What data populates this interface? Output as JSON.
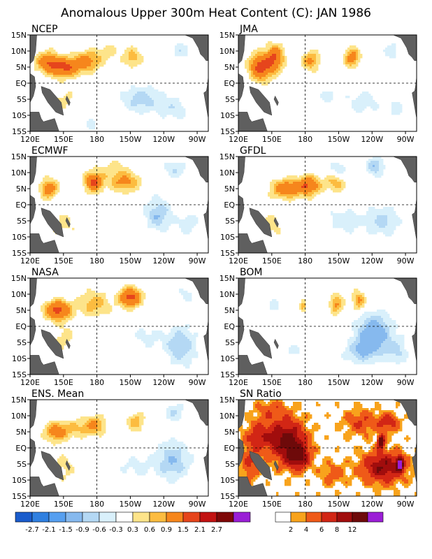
{
  "title": "Anomalous Upper 300m Heat Content (C): JAN 1986",
  "chart_data": [
    {
      "type": "heatmap",
      "title": "NCEP",
      "lon_ticks": [
        "120E",
        "150E",
        "180",
        "150W",
        "120W",
        "90W"
      ],
      "lat_ticks": [
        "15N",
        "10N",
        "5N",
        "EQ",
        "5S",
        "10S",
        "15S"
      ],
      "xlim": [
        120,
        280
      ],
      "ylim": [
        -15,
        15
      ],
      "features": [
        {
          "lon": 150,
          "lat": 5,
          "v": 1.6,
          "rx": 16,
          "ry": 3
        },
        {
          "lon": 172,
          "lat": 7,
          "v": 1.0,
          "rx": 12,
          "ry": 3
        },
        {
          "lon": 135,
          "lat": 7,
          "v": 1.0,
          "rx": 10,
          "ry": 3
        },
        {
          "lon": 212,
          "lat": 8,
          "v": 0.8,
          "rx": 8,
          "ry": 3
        },
        {
          "lon": 190,
          "lat": 10,
          "v": 0.4,
          "rx": 12,
          "ry": 3
        },
        {
          "lon": 150,
          "lat": -5,
          "v": 0.4,
          "rx": 10,
          "ry": 4
        },
        {
          "lon": 220,
          "lat": -5,
          "v": -0.8,
          "rx": 18,
          "ry": 4
        },
        {
          "lon": 250,
          "lat": -8,
          "v": -0.5,
          "rx": 14,
          "ry": 4
        },
        {
          "lon": 255,
          "lat": 10,
          "v": -0.5,
          "rx": 10,
          "ry": 3
        },
        {
          "lon": 175,
          "lat": -12,
          "v": -0.4,
          "rx": 8,
          "ry": 3
        }
      ]
    },
    {
      "type": "heatmap",
      "title": "JMA",
      "lon_ticks": [
        "120E",
        "150E",
        "180",
        "150W",
        "120W",
        "90W"
      ],
      "lat_ticks": [
        "15N",
        "10N",
        "5N",
        "EQ",
        "5S",
        "10S",
        "15S"
      ],
      "xlim": [
        120,
        280
      ],
      "ylim": [
        -15,
        15
      ],
      "features": [
        {
          "lon": 140,
          "lat": 5,
          "v": 1.8,
          "rx": 10,
          "ry": 4
        },
        {
          "lon": 153,
          "lat": 8,
          "v": 1.4,
          "rx": 8,
          "ry": 4
        },
        {
          "lon": 185,
          "lat": 7,
          "v": 1.0,
          "rx": 8,
          "ry": 3
        },
        {
          "lon": 222,
          "lat": 8,
          "v": 1.2,
          "rx": 7,
          "ry": 3
        },
        {
          "lon": 200,
          "lat": -4,
          "v": -0.4,
          "rx": 12,
          "ry": 3
        },
        {
          "lon": 232,
          "lat": -6,
          "v": -0.5,
          "rx": 14,
          "ry": 4
        },
        {
          "lon": 262,
          "lat": -8,
          "v": -0.4,
          "rx": 10,
          "ry": 4
        },
        {
          "lon": 258,
          "lat": 10,
          "v": -0.5,
          "rx": 8,
          "ry": 3
        }
      ]
    },
    {
      "type": "heatmap",
      "title": "ECMWF",
      "lon_ticks": [
        "120E",
        "150E",
        "180",
        "150W",
        "120W",
        "90W"
      ],
      "lat_ticks": [
        "15N",
        "10N",
        "5N",
        "EQ",
        "5S",
        "10S",
        "15S"
      ],
      "xlim": [
        120,
        280
      ],
      "ylim": [
        -15,
        15
      ],
      "features": [
        {
          "lon": 137,
          "lat": 5,
          "v": 1.2,
          "rx": 8,
          "ry": 3
        },
        {
          "lon": 177,
          "lat": 7,
          "v": 1.6,
          "rx": 8,
          "ry": 3
        },
        {
          "lon": 205,
          "lat": 7,
          "v": 1.0,
          "rx": 14,
          "ry": 3
        },
        {
          "lon": 195,
          "lat": 11,
          "v": 0.4,
          "rx": 16,
          "ry": 3
        },
        {
          "lon": 150,
          "lat": -6,
          "v": 0.4,
          "rx": 12,
          "ry": 5
        },
        {
          "lon": 235,
          "lat": -3,
          "v": -0.9,
          "rx": 12,
          "ry": 5
        },
        {
          "lon": 262,
          "lat": -6,
          "v": -0.5,
          "rx": 10,
          "ry": 4
        },
        {
          "lon": 250,
          "lat": 11,
          "v": -0.6,
          "rx": 10,
          "ry": 3
        }
      ]
    },
    {
      "type": "heatmap",
      "title": "GFDL",
      "lon_ticks": [
        "120E",
        "150E",
        "180",
        "150W",
        "120W",
        "90W"
      ],
      "lat_ticks": [
        "15N",
        "10N",
        "5N",
        "EQ",
        "5S",
        "10S",
        "15S"
      ],
      "xlim": [
        120,
        280
      ],
      "ylim": [
        -15,
        15
      ],
      "features": [
        {
          "lon": 163,
          "lat": 5,
          "v": 1.3,
          "rx": 14,
          "ry": 3
        },
        {
          "lon": 183,
          "lat": 6,
          "v": 1.4,
          "rx": 10,
          "ry": 3
        },
        {
          "lon": 207,
          "lat": 7,
          "v": 0.8,
          "rx": 10,
          "ry": 3
        },
        {
          "lon": 150,
          "lat": -6,
          "v": 0.4,
          "rx": 12,
          "ry": 5
        },
        {
          "lon": 215,
          "lat": -5,
          "v": -0.5,
          "rx": 18,
          "ry": 4
        },
        {
          "lon": 250,
          "lat": -5,
          "v": -0.7,
          "rx": 14,
          "ry": 5
        },
        {
          "lon": 243,
          "lat": 12,
          "v": -0.9,
          "rx": 8,
          "ry": 3
        },
        {
          "lon": 210,
          "lat": 11,
          "v": -0.6,
          "rx": 8,
          "ry": 3
        }
      ]
    },
    {
      "type": "heatmap",
      "title": "NASA",
      "lon_ticks": [
        "120E",
        "150E",
        "180",
        "150W",
        "120W",
        "90W"
      ],
      "lat_ticks": [
        "15N",
        "10N",
        "5N",
        "EQ",
        "5S",
        "10S",
        "15S"
      ],
      "xlim": [
        120,
        280
      ],
      "ylim": [
        -15,
        15
      ],
      "features": [
        {
          "lon": 145,
          "lat": 5,
          "v": 1.7,
          "rx": 12,
          "ry": 3
        },
        {
          "lon": 210,
          "lat": 9,
          "v": 1.7,
          "rx": 10,
          "ry": 3
        },
        {
          "lon": 178,
          "lat": 7,
          "v": 0.8,
          "rx": 14,
          "ry": 4
        },
        {
          "lon": 150,
          "lat": -4,
          "v": 0.4,
          "rx": 14,
          "ry": 5
        },
        {
          "lon": 255,
          "lat": -6,
          "v": -0.9,
          "rx": 14,
          "ry": 6
        },
        {
          "lon": 225,
          "lat": -3,
          "v": -0.4,
          "rx": 14,
          "ry": 4
        },
        {
          "lon": 260,
          "lat": 10,
          "v": -0.4,
          "rx": 8,
          "ry": 3
        }
      ]
    },
    {
      "type": "heatmap",
      "title": "BOM",
      "lon_ticks": [
        "120E",
        "150E",
        "180",
        "150W",
        "120W",
        "90W"
      ],
      "lat_ticks": [
        "15N",
        "10N",
        "5N",
        "EQ",
        "5S",
        "10S",
        "15S"
      ],
      "xlim": [
        120,
        280
      ],
      "ylim": [
        -15,
        15
      ],
      "features": [
        {
          "lon": 208,
          "lat": 7,
          "v": 1.0,
          "rx": 6,
          "ry": 3
        },
        {
          "lon": 228,
          "lat": 8,
          "v": 1.0,
          "rx": 6,
          "ry": 3
        },
        {
          "lon": 178,
          "lat": 6,
          "v": 0.8,
          "rx": 3,
          "ry": 2
        },
        {
          "lon": 242,
          "lat": -2,
          "v": -1.3,
          "rx": 16,
          "ry": 6
        },
        {
          "lon": 230,
          "lat": -8,
          "v": -0.7,
          "rx": 16,
          "ry": 4
        },
        {
          "lon": 263,
          "lat": -8,
          "v": -0.6,
          "rx": 10,
          "ry": 4
        },
        {
          "lon": 152,
          "lat": 6,
          "v": -0.4,
          "rx": 8,
          "ry": 3
        },
        {
          "lon": 170,
          "lat": -8,
          "v": -0.4,
          "rx": 8,
          "ry": 3
        }
      ]
    },
    {
      "type": "heatmap",
      "title": "ENS. Mean",
      "lon_ticks": [
        "120E",
        "150E",
        "180",
        "150W",
        "120W",
        "90W"
      ],
      "lat_ticks": [
        "15N",
        "10N",
        "5N",
        "EQ",
        "5S",
        "10S",
        "15S"
      ],
      "xlim": [
        120,
        280
      ],
      "ylim": [
        -15,
        15
      ],
      "features": [
        {
          "lon": 143,
          "lat": 5,
          "v": 1.2,
          "rx": 10,
          "ry": 3
        },
        {
          "lon": 178,
          "lat": 7,
          "v": 1.0,
          "rx": 10,
          "ry": 3
        },
        {
          "lon": 215,
          "lat": 8,
          "v": 0.8,
          "rx": 8,
          "ry": 3
        },
        {
          "lon": 160,
          "lat": 6,
          "v": 0.6,
          "rx": 12,
          "ry": 3
        },
        {
          "lon": 150,
          "lat": -6,
          "v": 0.4,
          "rx": 12,
          "ry": 5
        },
        {
          "lon": 248,
          "lat": -4,
          "v": -0.9,
          "rx": 16,
          "ry": 6
        },
        {
          "lon": 215,
          "lat": -6,
          "v": -0.4,
          "rx": 16,
          "ry": 4
        },
        {
          "lon": 250,
          "lat": 11,
          "v": -0.6,
          "rx": 10,
          "ry": 3
        }
      ]
    },
    {
      "type": "heatmap",
      "title": "SN Ratio",
      "lon_ticks": [
        "120E",
        "150E",
        "180",
        "150W",
        "120W",
        "90W"
      ],
      "lat_ticks": [
        "15N",
        "10N",
        "5N",
        "EQ",
        "5S",
        "10S",
        "15S"
      ],
      "xlim": [
        120,
        280
      ],
      "ylim": [
        -15,
        15
      ],
      "features": [
        {
          "lon": 165,
          "lat": 2,
          "v": 9,
          "rx": 16,
          "ry": 7
        },
        {
          "lon": 175,
          "lat": -3,
          "v": 6,
          "rx": 10,
          "ry": 4
        },
        {
          "lon": 140,
          "lat": 4,
          "v": 5,
          "rx": 14,
          "ry": 5
        },
        {
          "lon": 250,
          "lat": -6,
          "v": 8,
          "rx": 20,
          "ry": 5
        },
        {
          "lon": 230,
          "lat": 8,
          "v": 4,
          "rx": 16,
          "ry": 4
        },
        {
          "lon": 205,
          "lat": -8,
          "v": 3,
          "rx": 12,
          "ry": 4
        },
        {
          "lon": 130,
          "lat": -5,
          "v": 4,
          "rx": 8,
          "ry": 6
        },
        {
          "lon": 255,
          "lat": 8,
          "v": 5,
          "rx": 10,
          "ry": 3
        },
        {
          "lon": 150,
          "lat": 12,
          "v": 3,
          "rx": 14,
          "ry": 3
        },
        {
          "lon": 248,
          "lat": 2,
          "v": 12,
          "rx": 3,
          "ry": 2
        },
        {
          "lon": 265,
          "lat": -5,
          "v": 12,
          "rx": 3,
          "ry": 2
        }
      ]
    }
  ],
  "colorbar_anomaly": {
    "labels": [
      "-2.7",
      "-2.1",
      "-1.5",
      "-0.9",
      "-0.6",
      "-0.3",
      "0.3",
      "0.6",
      "0.9",
      "1.5",
      "2.1",
      "2.7"
    ],
    "colors": [
      "#1a5ccc",
      "#2f7fe0",
      "#569ff0",
      "#86b9ee",
      "#b4d8f4",
      "#d9f0fb",
      "#ffffff",
      "#fde48a",
      "#fcbc40",
      "#f6861c",
      "#e6451c",
      "#c21212",
      "#7e0808",
      "#9a1fd6"
    ]
  },
  "colorbar_ratio": {
    "labels": [
      "2",
      "4",
      "6",
      "8",
      "12"
    ],
    "colors": [
      "#ffffff",
      "#f8a31c",
      "#ef5a18",
      "#d22615",
      "#a10d0d",
      "#6e0a0a",
      "#9b1ed6"
    ]
  },
  "land_color": "#5f5f5f"
}
